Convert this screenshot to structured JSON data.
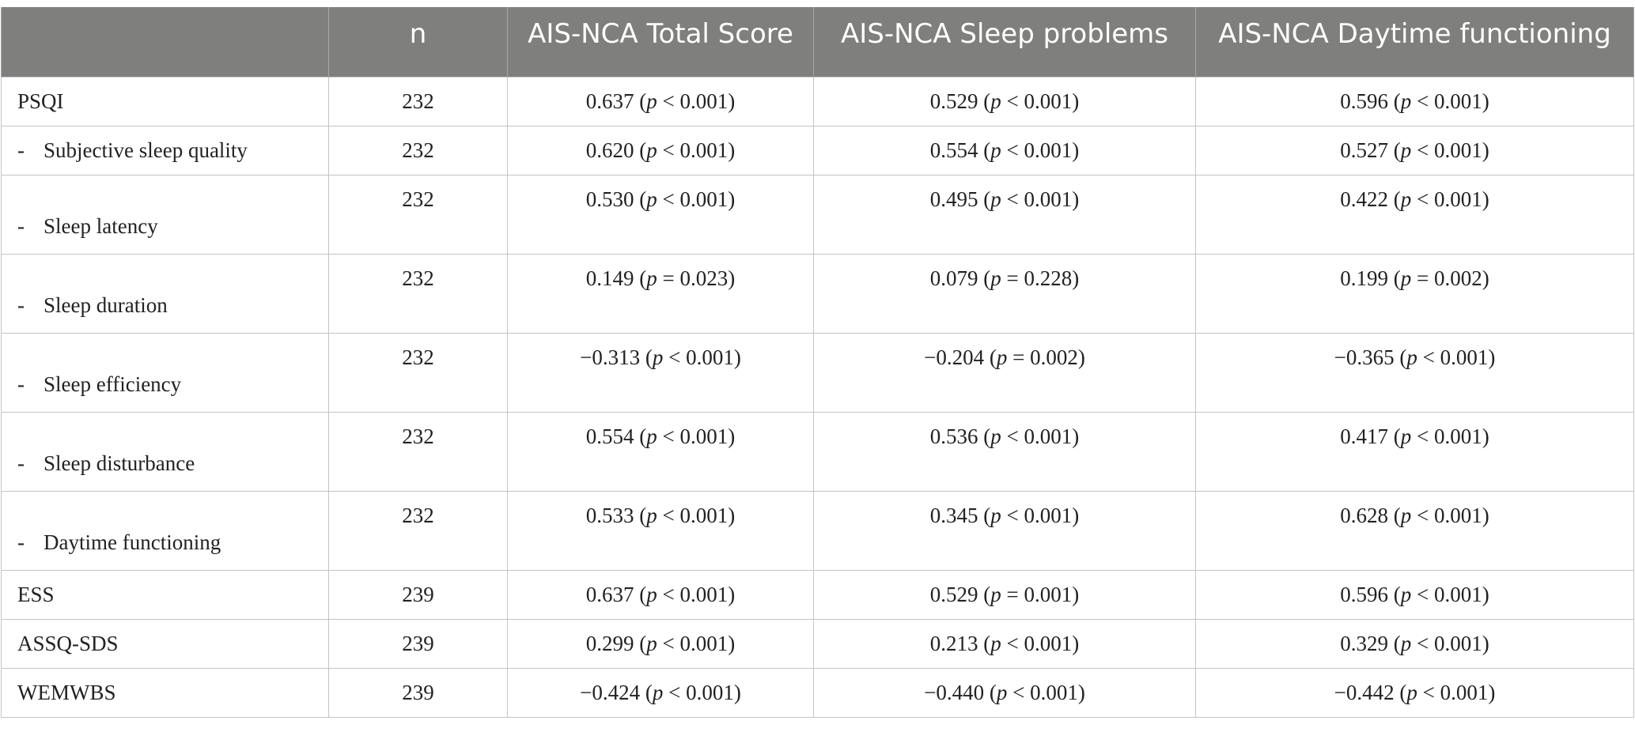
{
  "table": {
    "headers": [
      "",
      "n",
      "AIS-NCA Total Score",
      "AIS-NCA Sleep problems",
      "AIS-NCA Daytime functioning"
    ],
    "rows": [
      {
        "label": "PSQI",
        "sub": false,
        "tall": false,
        "n": "232",
        "c1": {
          "r": "0.637",
          "op": "<",
          "pv": "0.001"
        },
        "c2": {
          "r": "0.529",
          "op": "<",
          "pv": "0.001"
        },
        "c3": {
          "r": "0.596",
          "op": "<",
          "pv": "0.001"
        }
      },
      {
        "label": "Subjective sleep quality",
        "sub": true,
        "tall": false,
        "n": "232",
        "c1": {
          "r": "0.620",
          "op": "<",
          "pv": "0.001"
        },
        "c2": {
          "r": "0.554",
          "op": "<",
          "pv": "0.001"
        },
        "c3": {
          "r": "0.527",
          "op": "<",
          "pv": "0.001"
        }
      },
      {
        "label": "Sleep latency",
        "sub": true,
        "tall": true,
        "n": "232",
        "c1": {
          "r": "0.530",
          "op": "<",
          "pv": "0.001"
        },
        "c2": {
          "r": "0.495",
          "op": "<",
          "pv": "0.001"
        },
        "c3": {
          "r": "0.422",
          "op": "<",
          "pv": "0.001"
        }
      },
      {
        "label": "Sleep duration",
        "sub": true,
        "tall": true,
        "n": "232",
        "c1": {
          "r": "0.149",
          "op": "=",
          "pv": "0.023"
        },
        "c2": {
          "r": "0.079",
          "op": "=",
          "pv": "0.228"
        },
        "c3": {
          "r": "0.199",
          "op": "=",
          "pv": "0.002"
        }
      },
      {
        "label": "Sleep efficiency",
        "sub": true,
        "tall": true,
        "n": "232",
        "c1": {
          "r": "−0.313",
          "op": "<",
          "pv": "0.001"
        },
        "c2": {
          "r": "−0.204",
          "op": "=",
          "pv": "0.002"
        },
        "c3": {
          "r": "−0.365",
          "op": "<",
          "pv": "0.001"
        }
      },
      {
        "label": "Sleep disturbance",
        "sub": true,
        "tall": true,
        "n": "232",
        "c1": {
          "r": "0.554",
          "op": "<",
          "pv": "0.001"
        },
        "c2": {
          "r": "0.536",
          "op": "<",
          "pv": "0.001"
        },
        "c3": {
          "r": "0.417",
          "op": "<",
          "pv": "0.001"
        }
      },
      {
        "label": "Daytime functioning",
        "sub": true,
        "tall": true,
        "n": "232",
        "c1": {
          "r": "0.533",
          "op": "<",
          "pv": "0.001"
        },
        "c2": {
          "r": "0.345",
          "op": "<",
          "pv": "0.001"
        },
        "c3": {
          "r": "0.628",
          "op": "<",
          "pv": "0.001"
        }
      },
      {
        "label": "ESS",
        "sub": false,
        "tall": false,
        "n": "239",
        "c1": {
          "r": "0.637",
          "op": "<",
          "pv": "0.001"
        },
        "c2": {
          "r": "0.529",
          "op": "=",
          "pv": "0.001"
        },
        "c3": {
          "r": "0.596",
          "op": "<",
          "pv": "0.001"
        }
      },
      {
        "label": "ASSQ-SDS",
        "sub": false,
        "tall": false,
        "n": "239",
        "c1": {
          "r": "0.299",
          "op": "<",
          "pv": "0.001"
        },
        "c2": {
          "r": "0.213",
          "op": "<",
          "pv": "0.001"
        },
        "c3": {
          "r": "0.329",
          "op": "<",
          "pv": "0.001"
        }
      },
      {
        "label": "WEMWBS",
        "sub": false,
        "tall": false,
        "n": "239",
        "c1": {
          "r": "−0.424",
          "op": "<",
          "pv": "0.001"
        },
        "c2": {
          "r": "−0.440",
          "op": "<",
          "pv": "0.001"
        },
        "c3": {
          "r": "−0.442",
          "op": "<",
          "pv": "0.001"
        }
      }
    ],
    "p_symbol": "p",
    "sub_marker": "-",
    "colors": {
      "header_bg": "#7f7f7d",
      "header_text": "#ffffff",
      "grid": "#c4c4c4"
    }
  }
}
